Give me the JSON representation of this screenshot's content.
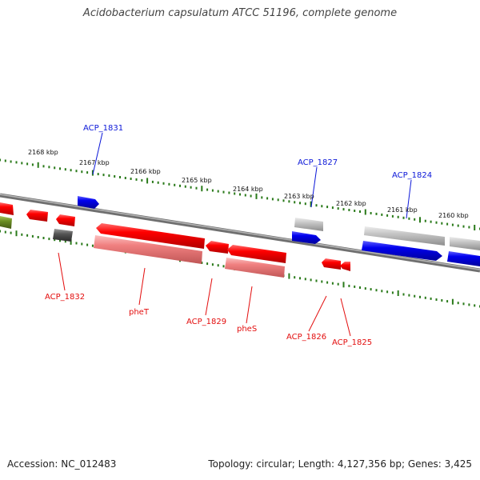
{
  "title": "Acidobacterium capsulatum ATCC 51196, complete genome",
  "footer": {
    "accession": "Accession: NC_012483",
    "stats": "Topology: circular; Length: 4,127,356 bp; Genes: 3,425"
  },
  "scale": {
    "ticks": [
      "2168 kbp",
      "2167 kbp",
      "2166 kbp",
      "2165 kbp",
      "2164 kbp",
      "2163 kbp",
      "2162 kbp",
      "2161 kbp",
      "2160 kbp"
    ]
  },
  "colors": {
    "forward_gene": "#0000e6",
    "reverse_gene": "#e60000",
    "reverse_product": "#f08080",
    "pseudo_gene": "#bdbdbd",
    "dark_gene": "#555555",
    "other_gene": "#6b8e23",
    "scale_ticks": "#2a7a1a",
    "backbone": "#7a7a7a"
  },
  "genes_top": [
    {
      "label": "ACP_1831",
      "color": "blue"
    },
    {
      "label": "ACP_1827",
      "color": "blue"
    },
    {
      "label": "ACP_1824",
      "color": "blue"
    }
  ],
  "genes_bottom": [
    {
      "label": "ACP_1832",
      "color": "red"
    },
    {
      "label": "pheT",
      "color": "red"
    },
    {
      "label": "ACP_1829",
      "color": "red"
    },
    {
      "label": "pheS",
      "color": "red"
    },
    {
      "label": "ACP_1826",
      "color": "red"
    },
    {
      "label": "ACP_1825",
      "color": "red"
    }
  ]
}
